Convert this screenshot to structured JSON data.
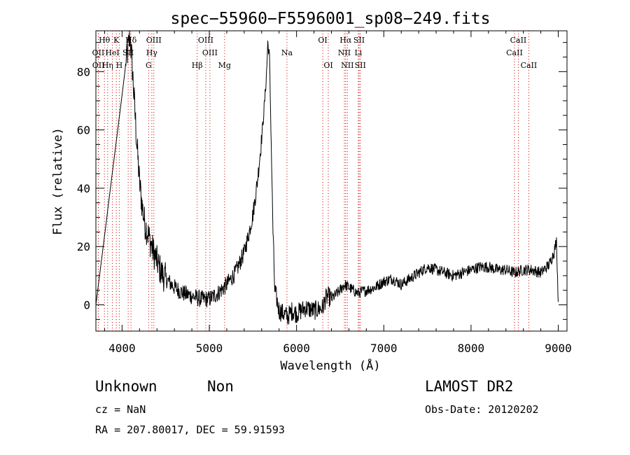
{
  "chart_data": {
    "type": "line",
    "title": "spec−55960−F5596001_sp08−249.fits",
    "xlabel": "Wavelength (Å)",
    "ylabel": "Flux (relative)",
    "xlim": [
      3700,
      9100
    ],
    "ylim": [
      -9,
      94
    ],
    "x_ticks": [
      4000,
      5000,
      6000,
      7000,
      8000,
      9000
    ],
    "y_ticks": [
      0,
      20,
      40,
      60,
      80
    ],
    "grid": false,
    "line_color": "#000000",
    "marker_color": "#d00000",
    "series": [
      {
        "x": [
          3700,
          3800,
          3900,
          4000,
          4040,
          4070,
          4090,
          4110,
          4140,
          4170,
          4200,
          4230,
          4260,
          4300,
          4350,
          4400,
          4450,
          4500,
          4600,
          4700,
          4800,
          4900,
          5000,
          5100,
          5200,
          5300,
          5400,
          5450,
          5500,
          5550,
          5600,
          5640,
          5660,
          5670,
          5690,
          5710,
          5730,
          5750,
          5780,
          5800,
          5850,
          5900,
          5950,
          6000,
          6100,
          6200,
          6300,
          6330,
          6360,
          6400,
          6500,
          6550,
          6600,
          6650,
          6700,
          6800,
          6900,
          7000,
          7100,
          7200,
          7300,
          7400,
          7500,
          7600,
          7700,
          7800,
          7900,
          8000,
          8100,
          8200,
          8300,
          8400,
          8500,
          8600,
          8700,
          8800,
          8900,
          8950,
          8980,
          9000
        ],
        "y": [
          0,
          24,
          48,
          72,
          82,
          88,
          92,
          85,
          70,
          55,
          42,
          34,
          28,
          24,
          19,
          15,
          11,
          9,
          6,
          4,
          3,
          2,
          2,
          4,
          7,
          11,
          18,
          24,
          31,
          42,
          57,
          72,
          82,
          90,
          85,
          55,
          25,
          5,
          1,
          -2,
          -3,
          -4,
          -2,
          -3,
          -1,
          -2,
          -1,
          2,
          3,
          2,
          5,
          7,
          6,
          5,
          4,
          5,
          6,
          8,
          9,
          7,
          9,
          11,
          13,
          12,
          11,
          10,
          11,
          12,
          13,
          13,
          12,
          12,
          11,
          12,
          12,
          11,
          14,
          18,
          22,
          1
        ]
      }
    ],
    "line_markers": [
      {
        "label": "Hθ",
        "x": 3798,
        "row": 0
      },
      {
        "label": "K",
        "x": 3934,
        "row": 0
      },
      {
        "label": "Hδ",
        "x": 4102,
        "row": 0
      },
      {
        "label": "OIII",
        "x": 4364,
        "row": 0
      },
      {
        "label": "OIII",
        "x": 4959,
        "row": 0
      },
      {
        "label": "OI",
        "x": 6300,
        "row": 0
      },
      {
        "label": "Hα",
        "x": 6563,
        "row": 0
      },
      {
        "label": "SII",
        "x": 6717,
        "row": 0
      },
      {
        "label": "CaII",
        "x": 8542,
        "row": 0
      },
      {
        "label": "OII",
        "x": 3727,
        "row": 1
      },
      {
        "label": "HeI",
        "x": 3889,
        "row": 1
      },
      {
        "label": "SII",
        "x": 4070,
        "row": 1
      },
      {
        "label": "Hγ",
        "x": 4341,
        "row": 1
      },
      {
        "label": "OIII",
        "x": 5007,
        "row": 1
      },
      {
        "label": "Na",
        "x": 5890,
        "row": 1
      },
      {
        "label": "NII",
        "x": 6548,
        "row": 1
      },
      {
        "label": "Li",
        "x": 6708,
        "row": 1
      },
      {
        "label": "CaII",
        "x": 8498,
        "row": 1
      },
      {
        "label": "OII",
        "x": 3729,
        "row": 2
      },
      {
        "label": "Hη",
        "x": 3835,
        "row": 2
      },
      {
        "label": "H",
        "x": 3968,
        "row": 2
      },
      {
        "label": "G",
        "x": 4305,
        "row": 2
      },
      {
        "label": "Hβ",
        "x": 4861,
        "row": 2
      },
      {
        "label": "Mg",
        "x": 5175,
        "row": 2
      },
      {
        "label": "OI",
        "x": 6364,
        "row": 2
      },
      {
        "label": "NII",
        "x": 6583,
        "row": 2
      },
      {
        "label": "SII",
        "x": 6731,
        "row": 2
      },
      {
        "label": "CaII",
        "x": 8662,
        "row": 2
      }
    ]
  },
  "info": {
    "class": "Unknown",
    "subclass": "Non",
    "survey": "LAMOST DR2",
    "cz": "cz = NaN",
    "obs_date": "Obs-Date: 20120202",
    "coords": "RA = 207.80017, DEC =  59.91593"
  }
}
